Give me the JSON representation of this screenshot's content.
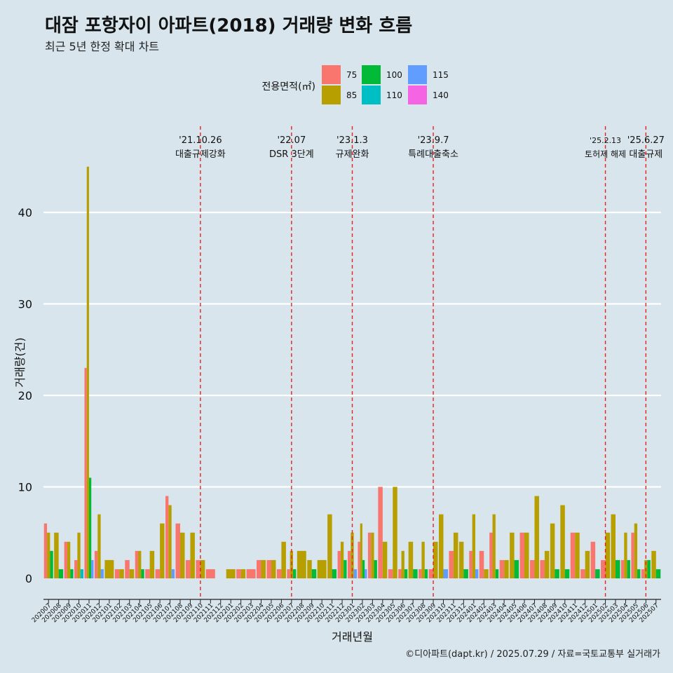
{
  "header": {
    "title": "대잠 포항자이 아파트(2018) 거래량 변화 흐름",
    "subtitle": "최근 5년 한정 확대 차트"
  },
  "caption": "©디아파트(dapt.kr) / 2025.07.29 / 자료=국토교통부 실거래가",
  "legend": {
    "title": "전용면적(㎡)",
    "items": [
      {
        "label": "75",
        "color": "#F8766D"
      },
      {
        "label": "85",
        "color": "#B79F00"
      },
      {
        "label": "100",
        "color": "#00BA38"
      },
      {
        "label": "110",
        "color": "#00BFC4"
      },
      {
        "label": "115",
        "color": "#619CFF"
      },
      {
        "label": "140",
        "color": "#F564E3"
      }
    ]
  },
  "chart_data": {
    "type": "bar",
    "xlabel": "거래년월",
    "ylabel": "거래량(건)",
    "ylim": [
      0,
      45
    ],
    "yticks": [
      0,
      10,
      20,
      30,
      40
    ],
    "grid": true,
    "legend_position": "top",
    "categories": [
      "202007",
      "202008",
      "202009",
      "202010",
      "202011",
      "202012",
      "202101",
      "202102",
      "202103",
      "202104",
      "202105",
      "202106",
      "202107",
      "202108",
      "202109",
      "202110",
      "202111",
      "202112",
      "202201",
      "202202",
      "202203",
      "202204",
      "202205",
      "202206",
      "202207",
      "202208",
      "202209",
      "202210",
      "202211",
      "202212",
      "202301",
      "202302",
      "202303",
      "202304",
      "202305",
      "202306",
      "202307",
      "202308",
      "202309",
      "202310",
      "202311",
      "202312",
      "202401",
      "202402",
      "202403",
      "202404",
      "202405",
      "202406",
      "202407",
      "202408",
      "202409",
      "202410",
      "202411",
      "202412",
      "202501",
      "202502",
      "202503",
      "202504",
      "202505",
      "202506",
      "202507"
    ],
    "series": [
      {
        "name": "75",
        "color": "#F8766D",
        "values": [
          6,
          0,
          4,
          2,
          23,
          3,
          0,
          1,
          2,
          3,
          1,
          1,
          9,
          6,
          2,
          2,
          1,
          0,
          0,
          1,
          1,
          2,
          2,
          1,
          1,
          0,
          0,
          0,
          0,
          3,
          3,
          4,
          5,
          10,
          1,
          1,
          0,
          1,
          1,
          0,
          3,
          0,
          3,
          3,
          5,
          2,
          0,
          5,
          2,
          2,
          0,
          0,
          5,
          1,
          4,
          2,
          0,
          2,
          5,
          1,
          0
        ]
      },
      {
        "name": "85",
        "color": "#B79F00",
        "values": [
          5,
          5,
          4,
          5,
          45,
          7,
          2,
          1,
          1,
          3,
          3,
          6,
          8,
          5,
          5,
          2,
          0,
          0,
          1,
          1,
          0,
          2,
          2,
          4,
          3,
          3,
          2,
          2,
          7,
          4,
          5,
          6,
          5,
          4,
          10,
          3,
          4,
          4,
          4,
          7,
          5,
          4,
          7,
          1,
          7,
          2,
          5,
          5,
          9,
          3,
          6,
          8,
          5,
          3,
          0,
          5,
          7,
          5,
          6,
          2,
          3
        ]
      },
      {
        "name": "100",
        "color": "#00BA38",
        "values": [
          3,
          1,
          1,
          0,
          11,
          0,
          0,
          0,
          0,
          1,
          0,
          0,
          0,
          0,
          0,
          0,
          0,
          0,
          0,
          0,
          0,
          0,
          0,
          0,
          1,
          0,
          1,
          0,
          1,
          2,
          0,
          2,
          2,
          0,
          0,
          1,
          1,
          1,
          0,
          0,
          0,
          1,
          0,
          0,
          1,
          0,
          2,
          0,
          0,
          0,
          1,
          1,
          0,
          0,
          1,
          0,
          2,
          2,
          1,
          2,
          1
        ]
      },
      {
        "name": "110",
        "color": "#00BFC4",
        "values": [
          0,
          0,
          0,
          1,
          0,
          0,
          0,
          0,
          0,
          0,
          0,
          0,
          0,
          0,
          0,
          0,
          0,
          0,
          0,
          0,
          0,
          0,
          0,
          0,
          0,
          0,
          0,
          0,
          0,
          0,
          0,
          0,
          0,
          0,
          0,
          0,
          0,
          0,
          0,
          0,
          0,
          0,
          0,
          0,
          0,
          0,
          0,
          0,
          0,
          0,
          0,
          0,
          0,
          0,
          0,
          0,
          0,
          0,
          0,
          0,
          0
        ]
      },
      {
        "name": "115",
        "color": "#619CFF",
        "values": [
          0,
          0,
          0,
          0,
          2,
          1,
          0,
          0,
          0,
          0,
          0,
          0,
          1,
          0,
          0,
          0,
          0,
          0,
          0,
          0,
          0,
          0,
          0,
          0,
          0,
          0,
          0,
          0,
          0,
          0,
          1,
          1,
          0,
          0,
          0,
          0,
          0,
          0,
          0,
          1,
          0,
          0,
          1,
          0,
          0,
          0,
          0,
          0,
          0,
          0,
          0,
          0,
          0,
          0,
          0,
          0,
          0,
          0,
          0,
          0,
          0
        ]
      },
      {
        "name": "140",
        "color": "#F564E3",
        "values": [
          0,
          0,
          0,
          0,
          0,
          0,
          0,
          0,
          0,
          0,
          0,
          0,
          0,
          0,
          0,
          0,
          0,
          0,
          0,
          0,
          0,
          0,
          0,
          0,
          0,
          0,
          0,
          0,
          0,
          0,
          0,
          0,
          0,
          0,
          0,
          0,
          0,
          0,
          0,
          0,
          0,
          0,
          0,
          0,
          0,
          0,
          0,
          0,
          0,
          0,
          0,
          0,
          0,
          0,
          0,
          0,
          0,
          0,
          0,
          0,
          0
        ]
      }
    ],
    "annotations": [
      {
        "category": "202110",
        "date": "'21.10.26",
        "text": "대출규제강화"
      },
      {
        "category": "202207",
        "date": "'22.07",
        "text": "DSR 3단계"
      },
      {
        "category": "202301",
        "date": "'23.1.3",
        "text": "규제완화"
      },
      {
        "category": "202309",
        "date": "'23.9.7",
        "text": "특례대출축소"
      },
      {
        "category": "202502",
        "date": "'25.2.13",
        "text": "토허제 해제"
      },
      {
        "category": "202506",
        "date": "'25.6.27",
        "text": "대출규제"
      }
    ]
  }
}
